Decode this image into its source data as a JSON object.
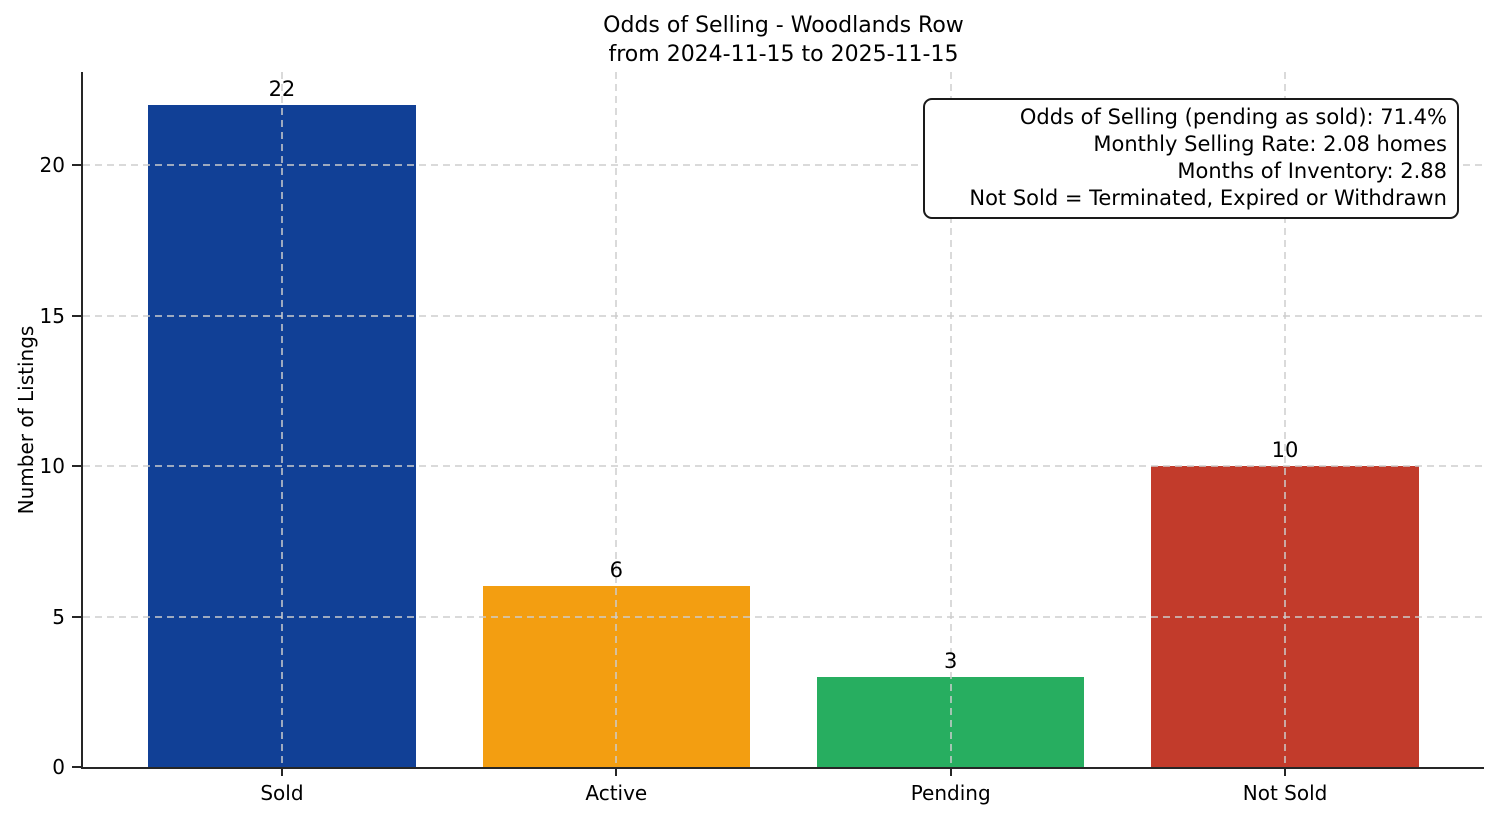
{
  "chart_data": {
    "type": "bar",
    "title_lines": [
      "Odds of Selling - Woodlands Row",
      "from 2024-11-15 to 2025-11-15"
    ],
    "title": "Odds of Selling - Woodlands Row from 2024-11-15 to 2025-11-15",
    "categories": [
      "Sold",
      "Active",
      "Pending",
      "Not Sold"
    ],
    "values": [
      22,
      6,
      3,
      10
    ],
    "bar_colors": [
      "#114096",
      "#f39e11",
      "#27ae60",
      "#c23b2b"
    ],
    "xlabel": "",
    "ylabel": "Number of Listings",
    "yticks": [
      0,
      5,
      10,
      15,
      20
    ],
    "ylim": [
      0,
      23.1
    ],
    "grid": {
      "style": "dashed",
      "color": "#d0d0d0",
      "horizontal": true,
      "vertical": true
    },
    "legend_position": "none",
    "annotation_lines": [
      "Odds of Selling (pending as sold): 71.4%",
      "Monthly Selling Rate: 2.08 homes",
      "Months of Inventory: 2.88",
      "Not Sold = Terminated, Expired or Withdrawn"
    ]
  }
}
